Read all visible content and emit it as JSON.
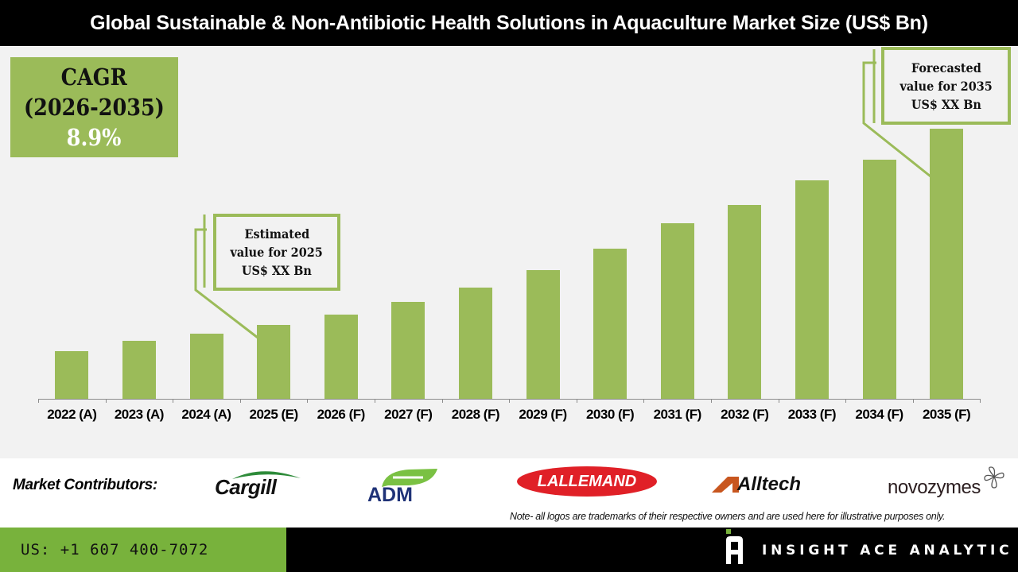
{
  "header": {
    "title": "Global Sustainable & Non-Antibiotic Health Solutions in Aquaculture Market Size (US$ Bn)"
  },
  "cagr": {
    "label": "CAGR",
    "period": "(2026-2035)",
    "value": "8.9%"
  },
  "callouts": {
    "estimated": {
      "line1": "Estimated",
      "line2": "value for 2025",
      "line3": "US$ XX Bn"
    },
    "forecasted": {
      "line1": "Forecasted",
      "line2": "value for 2035",
      "line3": "US$ XX Bn"
    }
  },
  "chart_data": {
    "type": "bar",
    "title": "Global Sustainable & Non-Antibiotic Health Solutions in Aquaculture Market Size (US$ Bn)",
    "xlabel": "",
    "ylabel": "US$ Bn",
    "grid": false,
    "legend": null,
    "categories": [
      "2022 (A)",
      "2023 (A)",
      "2024 (A)",
      "2025 (E)",
      "2026 (F)",
      "2027 (F)",
      "2028 (F)",
      "2029 (F)",
      "2030 (F)",
      "2031 (F)",
      "2032 (F)",
      "2033 (F)",
      "2034 (F)",
      "2035 (F)"
    ],
    "values": [
      60,
      73,
      82,
      93,
      106,
      122,
      140,
      162,
      189,
      221,
      244,
      275,
      301,
      340
    ],
    "value_units": "relative bar height (no axis values shown)",
    "bar_color": "#9bbb59",
    "annotations": [
      "CAGR (2026-2035) 8.9%",
      "Estimated value for 2025 US$ XX Bn",
      "Forecasted value for 2035 US$ XX Bn"
    ]
  },
  "contributors": {
    "label": "Market Contributors:",
    "logos": [
      "Cargill",
      "ADM",
      "LALLEMAND",
      "Alltech",
      "novozymes"
    ]
  },
  "note": "Note- all logos are trademarks of their respective owners and are used here for illustrative purposes only.",
  "footer": {
    "phone": "US: +1 607 400-7072",
    "brand": "INSIGHT ACE ANALYTIC"
  },
  "colors": {
    "accent_green": "#9bbb59",
    "footer_green": "#78b23c",
    "header_bg": "#000000",
    "chart_bg": "#f2f2f2"
  }
}
